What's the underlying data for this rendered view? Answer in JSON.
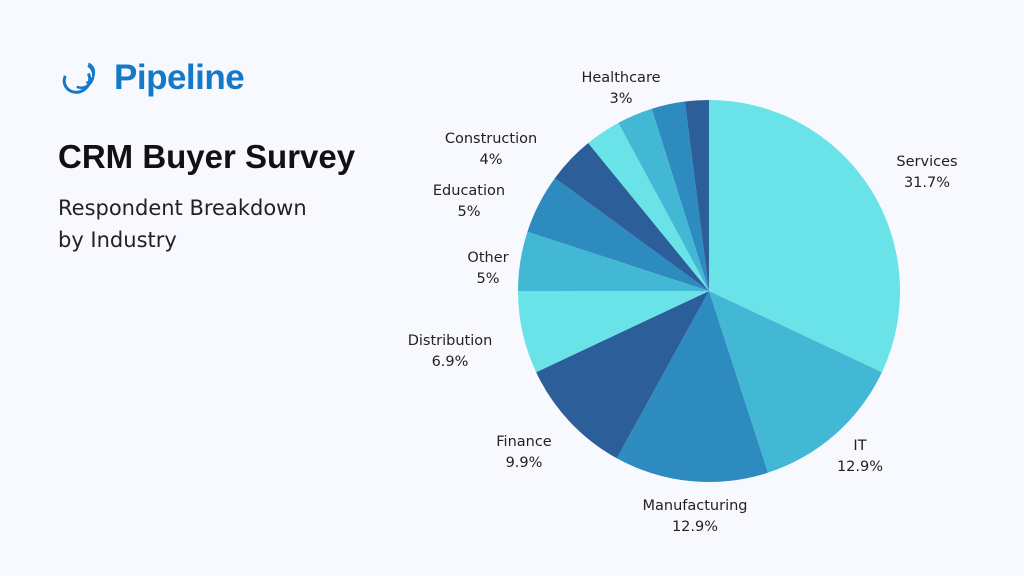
{
  "brand": {
    "name": "Pipeline",
    "color": "#1479c9",
    "icon": "pipeline-swirl-logo"
  },
  "header": {
    "title": "CRM Buyer Survey",
    "subtitle_line1": "Respondent Breakdown",
    "subtitle_line2": "by Industry"
  },
  "chart_data": {
    "type": "pie",
    "start": "top, clockwise",
    "slices": [
      {
        "label": "Services",
        "value": 31.7,
        "display": "31.7%",
        "color": "#6ae3e8"
      },
      {
        "label": "IT",
        "value": 12.9,
        "display": "12.9%",
        "color": "#42b8d4"
      },
      {
        "label": "Manufacturing",
        "value": 12.9,
        "display": "12.9%",
        "color": "#2e8bc0"
      },
      {
        "label": "Finance",
        "value": 9.9,
        "display": "9.9%",
        "color": "#2c5e99"
      },
      {
        "label": "Distribution",
        "value": 6.9,
        "display": "6.9%",
        "color": "#6ae3e8"
      },
      {
        "label": "Other",
        "value": 5,
        "display": "5%",
        "color": "#42b8d4"
      },
      {
        "label": "Education",
        "value": 5,
        "display": "5%",
        "color": "#2e8bc0"
      },
      {
        "label": "Construction",
        "value": 4,
        "display": "4%",
        "color": "#2c5e99"
      },
      {
        "label": "",
        "value": 3,
        "display": "",
        "color": "#6ae3e8"
      },
      {
        "label": "Healthcare",
        "value": 3,
        "display": "3%",
        "color": "#42b8d4"
      },
      {
        "label": "",
        "value": 2.8,
        "display": "",
        "color": "#2e8bc0"
      },
      {
        "label": "",
        "value": 2,
        "display": "",
        "color": "#2c5e99"
      }
    ]
  }
}
